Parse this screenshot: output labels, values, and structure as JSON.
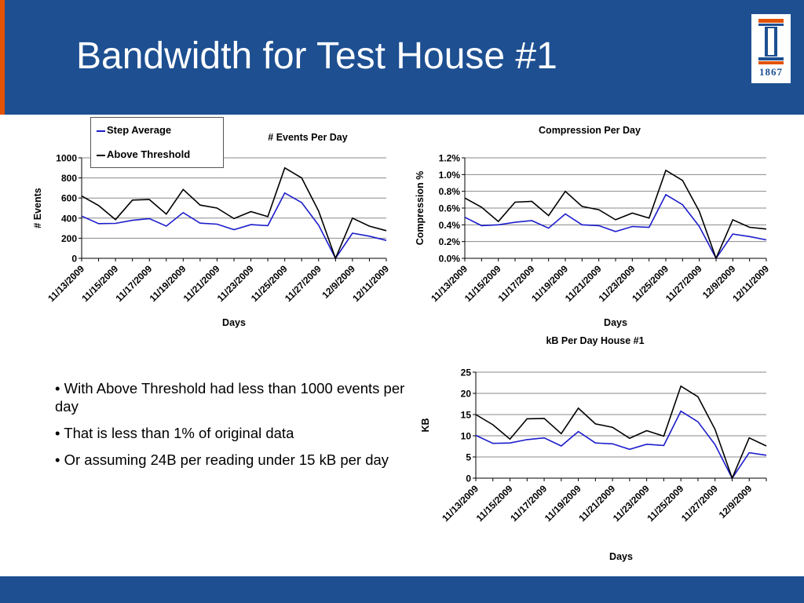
{
  "slide": {
    "title": "Bandwidth for Test House #1",
    "logo_year": "1867"
  },
  "colors": {
    "header": "#1d4f91",
    "accent": "#e35205",
    "step_average": "#1c1ccc",
    "above_threshold": "#000000"
  },
  "bullets": [
    "•  With Above Threshold had less than 1000 events per day",
    "• That is less than 1% of   original data",
    "• Or assuming 24B per reading under 15 kB per day"
  ],
  "chart_data": [
    {
      "type": "line",
      "title": "# Events Per Day",
      "xlabel": "Days",
      "ylabel": "# Events",
      "ylim": [
        0,
        1000
      ],
      "yticks": [
        "0",
        "200",
        "400",
        "600",
        "800",
        "1000"
      ],
      "tick_labels": [
        "11/13/2009",
        "11/15/2009",
        "11/17/2009",
        "11/19/2009",
        "11/21/2009",
        "11/23/2009",
        "11/25/2009",
        "11/27/2009",
        "12/9/2009",
        "12/11/2009"
      ],
      "grid": true,
      "legend": {
        "placement": "top-left",
        "entries": [
          "Step Average",
          "Above Threshold"
        ]
      },
      "series": [
        {
          "name": "Step Average",
          "values": [
            420,
            345,
            348,
            378,
            395,
            320,
            455,
            350,
            340,
            285,
            335,
            325,
            650,
            555,
            330,
            0,
            250,
            220,
            178
          ]
        },
        {
          "name": "Above Threshold",
          "values": [
            620,
            525,
            385,
            580,
            585,
            440,
            685,
            530,
            500,
            395,
            465,
            415,
            900,
            800,
            470,
            0,
            400,
            320,
            275
          ]
        }
      ]
    },
    {
      "type": "line",
      "title": "Compression Per Day",
      "xlabel": "Days",
      "ylabel": "Compression %",
      "ylim": [
        0,
        1.2
      ],
      "yticks": [
        "0.0%",
        "0.2%",
        "0.4%",
        "0.6%",
        "0.8%",
        "1.0%",
        "1.2%"
      ],
      "tick_labels": [
        "11/13/2009",
        "11/15/2009",
        "11/17/2009",
        "11/19/2009",
        "11/21/2009",
        "11/23/2009",
        "11/25/2009",
        "11/27/2009",
        "12/9/2009",
        "12/11/2009"
      ],
      "grid": true,
      "series": [
        {
          "name": "Step Average",
          "values": [
            0.49,
            0.39,
            0.4,
            0.43,
            0.45,
            0.36,
            0.53,
            0.4,
            0.39,
            0.32,
            0.38,
            0.37,
            0.76,
            0.64,
            0.38,
            0.0,
            0.29,
            0.26,
            0.22
          ]
        },
        {
          "name": "Above Threshold",
          "values": [
            0.72,
            0.61,
            0.44,
            0.67,
            0.68,
            0.51,
            0.8,
            0.62,
            0.58,
            0.46,
            0.54,
            0.48,
            1.05,
            0.93,
            0.56,
            0.0,
            0.46,
            0.37,
            0.35
          ]
        }
      ]
    },
    {
      "type": "line",
      "title": "kB Per Day House #1",
      "xlabel": "Days",
      "ylabel": "KB",
      "ylim": [
        0,
        25
      ],
      "yticks": [
        "0",
        "5",
        "10",
        "15",
        "20",
        "25"
      ],
      "tick_labels": [
        "11/13/2009",
        "11/15/2009",
        "11/17/2009",
        "11/19/2009",
        "11/21/2009",
        "11/23/2009",
        "11/25/2009",
        "11/27/2009",
        "12/9/2009"
      ],
      "grid": true,
      "series": [
        {
          "name": "Step Average",
          "values": [
            10.1,
            8.2,
            8.3,
            9.1,
            9.5,
            7.6,
            11.0,
            8.3,
            8.1,
            6.8,
            8.0,
            7.7,
            15.8,
            13.3,
            7.9,
            0.0,
            6.0,
            5.4
          ]
        },
        {
          "name": "Above Threshold",
          "values": [
            15.0,
            12.6,
            9.2,
            14.0,
            14.1,
            10.5,
            16.5,
            12.8,
            12.0,
            9.4,
            11.2,
            9.9,
            21.7,
            19.2,
            11.5,
            0.0,
            9.5,
            7.6
          ]
        }
      ]
    }
  ]
}
